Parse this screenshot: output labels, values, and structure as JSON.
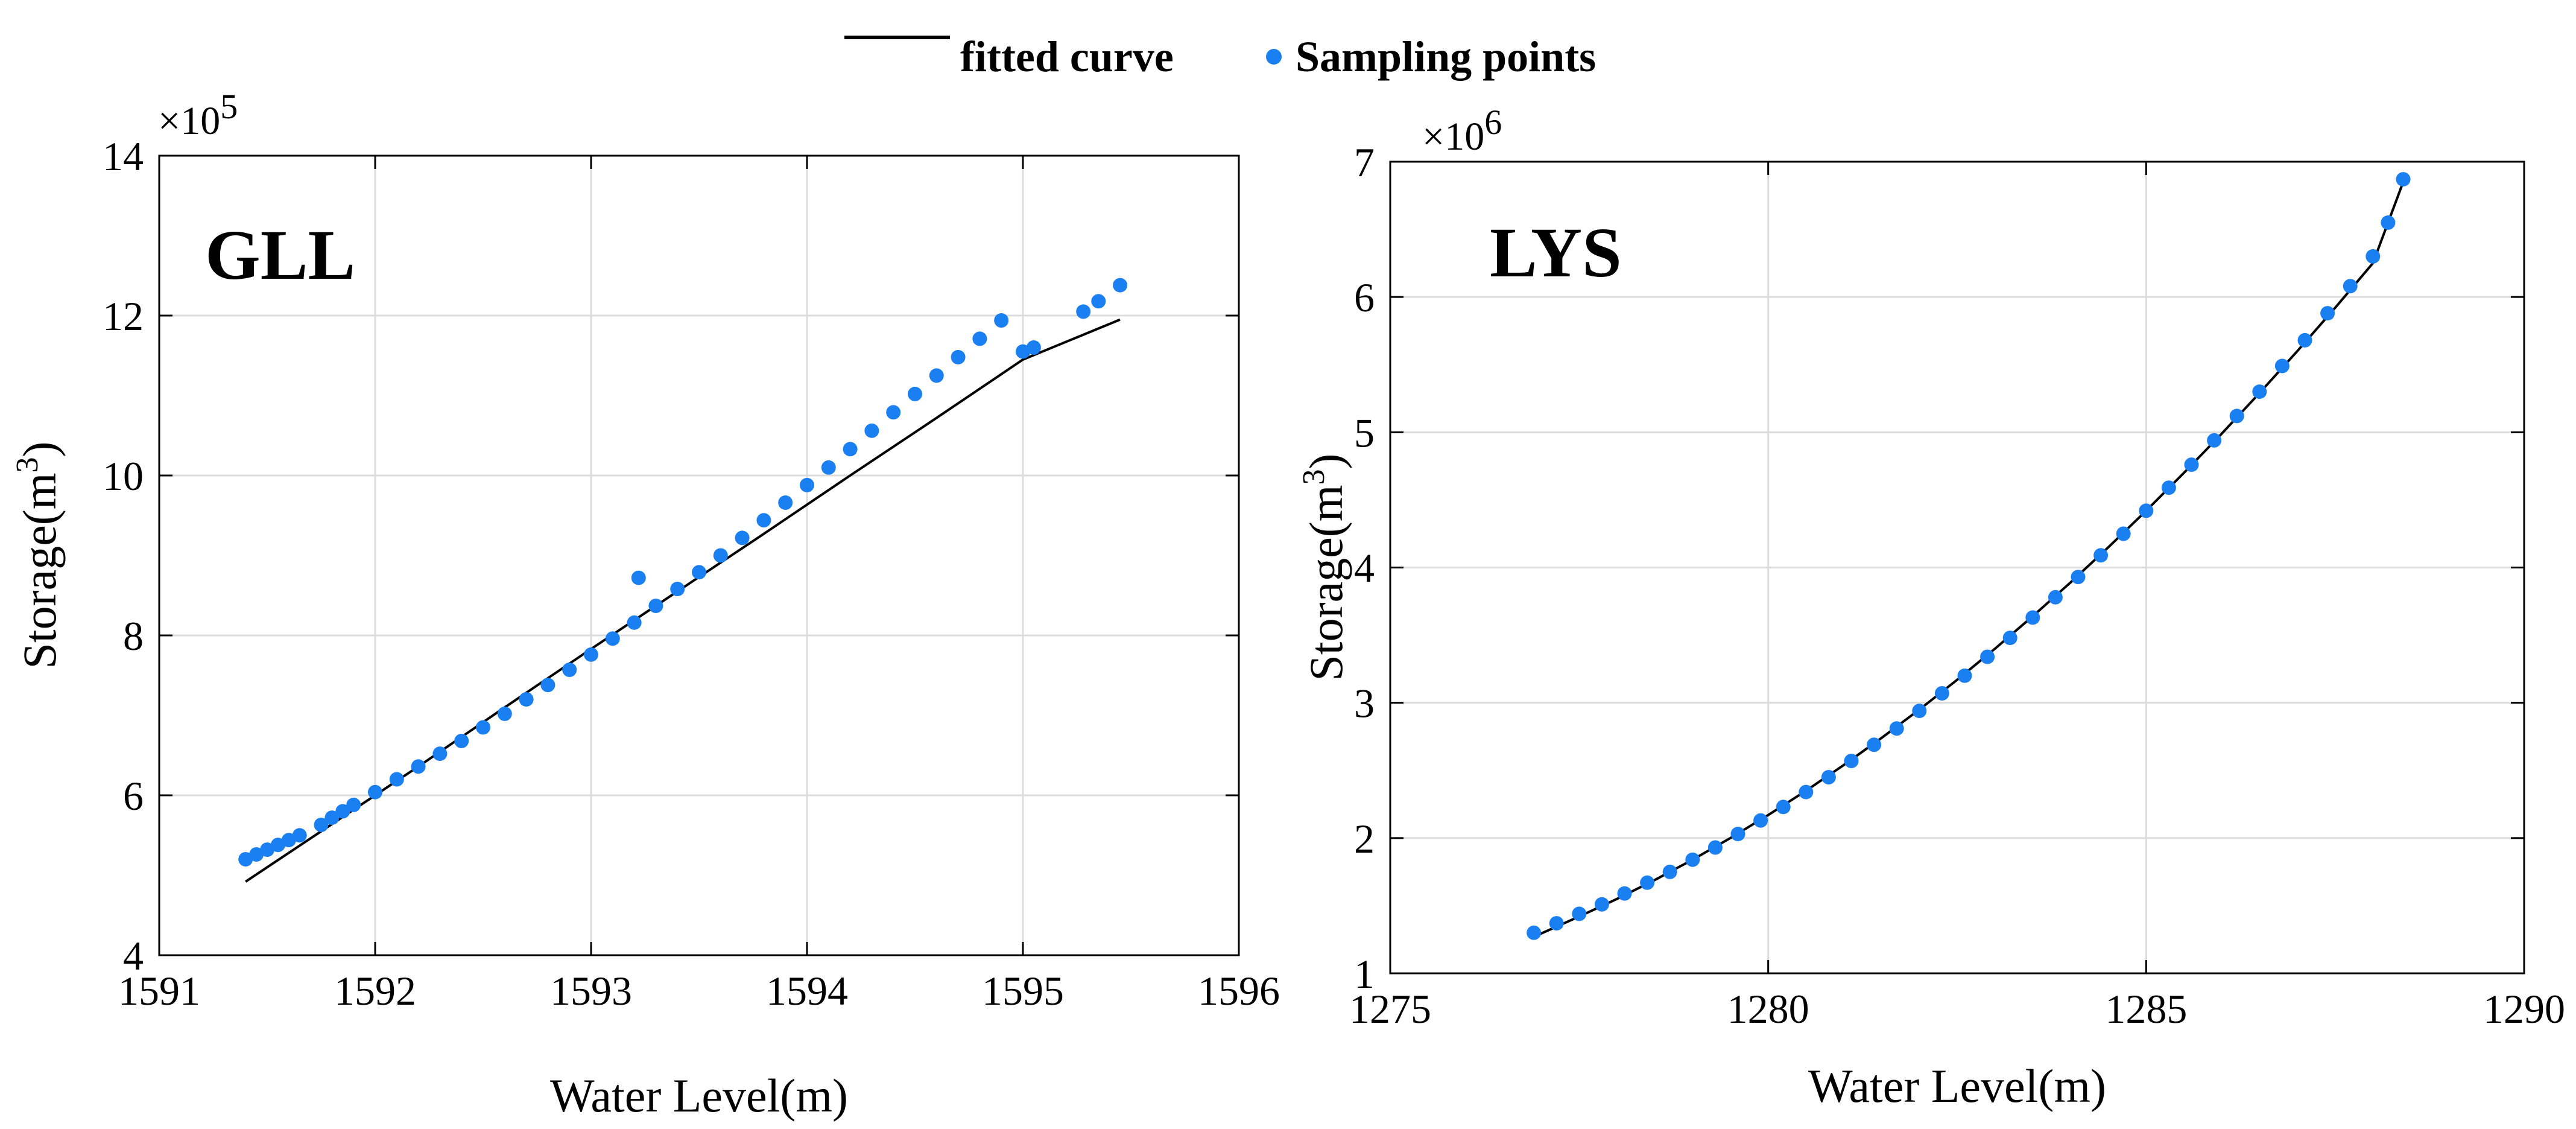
{
  "legend": {
    "fitted_label": "fitted curve",
    "sampling_label": "Sampling points",
    "fitted_color": "#000000",
    "sampling_color": "#1a7ff0"
  },
  "chart_data": [
    {
      "type": "scatter",
      "title": "GLL",
      "xlabel": "Water Level(m)",
      "ylabel": "Storage(m³)",
      "ylabel_base": "Storage(m",
      "ylabel_sup": "3",
      "ylabel_close": ")",
      "exponent_base": "×10",
      "exponent_power": "5",
      "xlim": [
        1591,
        1596
      ],
      "ylim": [
        4,
        14
      ],
      "xticks": [
        1591,
        1592,
        1593,
        1594,
        1595,
        1596
      ],
      "yticks": [
        4,
        6,
        8,
        10,
        12,
        14
      ],
      "grid": true,
      "series": [
        {
          "name": "fitted curve",
          "kind": "line",
          "x": [
            1591.4,
            1591.8,
            1592.2,
            1592.6,
            1593.0,
            1593.4,
            1593.8,
            1594.2,
            1594.6,
            1595.0,
            1595.45
          ],
          "y": [
            4.92,
            5.64,
            6.36,
            7.1,
            7.83,
            8.55,
            9.27,
            10.0,
            10.72,
            11.45,
            11.95
          ]
        },
        {
          "name": "Sampling points",
          "kind": "scatter",
          "x": [
            1591.4,
            1591.45,
            1591.5,
            1591.55,
            1591.6,
            1591.65,
            1591.75,
            1591.8,
            1591.85,
            1591.9,
            1592.0,
            1592.1,
            1592.2,
            1592.3,
            1592.4,
            1592.5,
            1592.6,
            1592.7,
            1592.8,
            1592.9,
            1593.0,
            1593.1,
            1593.2,
            1593.3,
            1593.4,
            1593.5,
            1593.6,
            1593.7,
            1593.8,
            1593.9,
            1594.0,
            1594.1,
            1594.2,
            1594.3,
            1594.4,
            1594.5,
            1594.6,
            1594.7,
            1594.8,
            1594.9,
            1595.0,
            1595.05,
            1593.22,
            1595.28,
            1595.35,
            1595.45
          ],
          "y": [
            5.2,
            5.26,
            5.32,
            5.38,
            5.44,
            5.5,
            5.63,
            5.72,
            5.8,
            5.88,
            6.04,
            6.2,
            6.36,
            6.52,
            6.68,
            6.85,
            7.02,
            7.2,
            7.38,
            7.57,
            7.76,
            7.96,
            8.16,
            8.37,
            8.58,
            8.79,
            9.0,
            9.22,
            9.44,
            9.66,
            9.88,
            10.1,
            10.33,
            10.56,
            10.79,
            11.02,
            11.25,
            11.48,
            11.71,
            11.94,
            11.55,
            11.6,
            8.72,
            12.05,
            12.18,
            12.38
          ]
        }
      ]
    },
    {
      "type": "scatter",
      "title": "LYS",
      "xlabel": "Water Level(m)",
      "ylabel": "Storage(m³)",
      "ylabel_base": "Storage(m",
      "ylabel_sup": "3",
      "ylabel_close": ")",
      "exponent_base": "×10",
      "exponent_power": "6",
      "xlim": [
        1275,
        1290
      ],
      "ylim": [
        1,
        7
      ],
      "xticks": [
        1275,
        1280,
        1285,
        1290
      ],
      "yticks": [
        1,
        2,
        3,
        4,
        5,
        6,
        7
      ],
      "grid": true,
      "series": [
        {
          "name": "fitted curve",
          "kind": "line",
          "x": [
            1276.9,
            1277.5,
            1278.0,
            1278.5,
            1279.0,
            1279.5,
            1280.0,
            1280.5,
            1281.0,
            1281.5,
            1282.0,
            1282.5,
            1283.0,
            1283.5,
            1284.0,
            1284.5,
            1285.0,
            1285.5,
            1286.0,
            1286.5,
            1287.0,
            1287.5,
            1288.0,
            1288.4
          ],
          "y": [
            1.27,
            1.42,
            1.55,
            1.69,
            1.84,
            2.0,
            2.17,
            2.35,
            2.54,
            2.74,
            2.95,
            3.17,
            3.4,
            3.64,
            3.89,
            4.15,
            4.42,
            4.7,
            4.99,
            5.29,
            5.6,
            5.92,
            6.25,
            6.85
          ]
        },
        {
          "name": "Sampling points",
          "kind": "scatter",
          "x": [
            1276.9,
            1277.2,
            1277.5,
            1277.8,
            1278.1,
            1278.4,
            1278.7,
            1279.0,
            1279.3,
            1279.6,
            1279.9,
            1280.2,
            1280.5,
            1280.8,
            1281.1,
            1281.4,
            1281.7,
            1282.0,
            1282.3,
            1282.6,
            1282.9,
            1283.2,
            1283.5,
            1283.8,
            1284.1,
            1284.4,
            1284.7,
            1285.0,
            1285.3,
            1285.6,
            1285.9,
            1286.2,
            1286.5,
            1286.8,
            1287.1,
            1287.4,
            1287.7,
            1288.0,
            1288.2,
            1288.4
          ],
          "y": [
            1.3,
            1.37,
            1.44,
            1.51,
            1.59,
            1.67,
            1.75,
            1.84,
            1.93,
            2.03,
            2.13,
            2.23,
            2.34,
            2.45,
            2.57,
            2.69,
            2.81,
            2.94,
            3.07,
            3.2,
            3.34,
            3.48,
            3.63,
            3.78,
            3.93,
            4.09,
            4.25,
            4.42,
            4.59,
            4.76,
            4.94,
            5.12,
            5.3,
            5.49,
            5.68,
            5.88,
            6.08,
            6.3,
            6.55,
            6.87
          ]
        }
      ]
    }
  ]
}
